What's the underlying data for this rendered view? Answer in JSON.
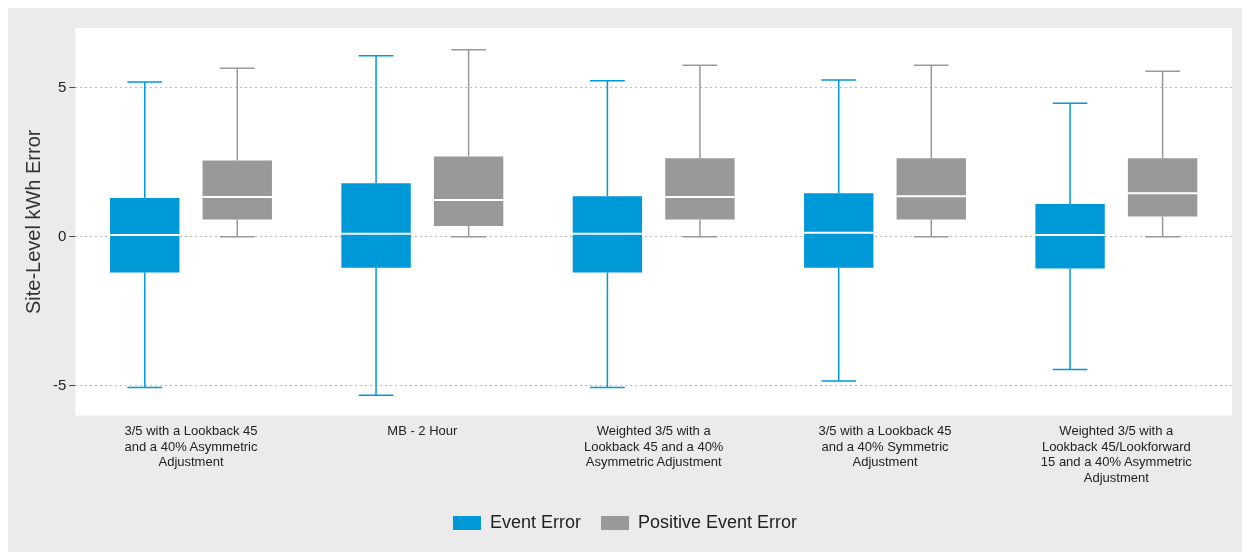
{
  "chart_data": {
    "type": "box",
    "ylabel": "Site-Level kWh Error",
    "categories": [
      "3/5 with a Lookback 45 and a 40% Asymmetric Adjustment",
      "MB - 2 Hour",
      "Weighted 3/5 with a Lookback 45 and a 40% Asymmetric Adjustment",
      "3/5 with a Lookback 45 and a 40% Symmetric Adjustment",
      "Weighted 3/5 with a Lookback 45/Lookforward 15 and a 40% Asymmetric Adjustment"
    ],
    "series": [
      {
        "name": "Event Error",
        "color": "#0099d8",
        "boxes": [
          {
            "low": -5.06,
            "q1": -1.2,
            "median": 0.06,
            "q3": 1.3,
            "high": 5.19
          },
          {
            "low": -5.32,
            "q1": -1.04,
            "median": 0.1,
            "q3": 1.79,
            "high": 6.07
          },
          {
            "low": -5.06,
            "q1": -1.2,
            "median": 0.1,
            "q3": 1.36,
            "high": 5.23
          },
          {
            "low": -4.84,
            "q1": -1.04,
            "median": 0.13,
            "q3": 1.46,
            "high": 5.26
          },
          {
            "low": -4.45,
            "q1": -1.07,
            "median": 0.06,
            "q3": 1.1,
            "high": 4.48
          }
        ]
      },
      {
        "name": "Positive Event Error",
        "color": "#999999",
        "boxes": [
          {
            "low": 0,
            "q1": 0.58,
            "median": 1.33,
            "q3": 2.56,
            "high": 5.65
          },
          {
            "low": 0,
            "q1": 0.36,
            "median": 1.23,
            "q3": 2.69,
            "high": 6.27
          },
          {
            "low": 0,
            "q1": 0.58,
            "median": 1.33,
            "q3": 2.63,
            "high": 5.75
          },
          {
            "low": 0,
            "q1": 0.58,
            "median": 1.36,
            "q3": 2.63,
            "high": 5.75
          },
          {
            "low": 0,
            "q1": 0.68,
            "median": 1.46,
            "q3": 2.63,
            "high": 5.55
          }
        ]
      }
    ],
    "ylim": [
      -6,
      7
    ],
    "yticks": [
      -5,
      0,
      5
    ],
    "grid": "y",
    "legend": "bottom"
  }
}
